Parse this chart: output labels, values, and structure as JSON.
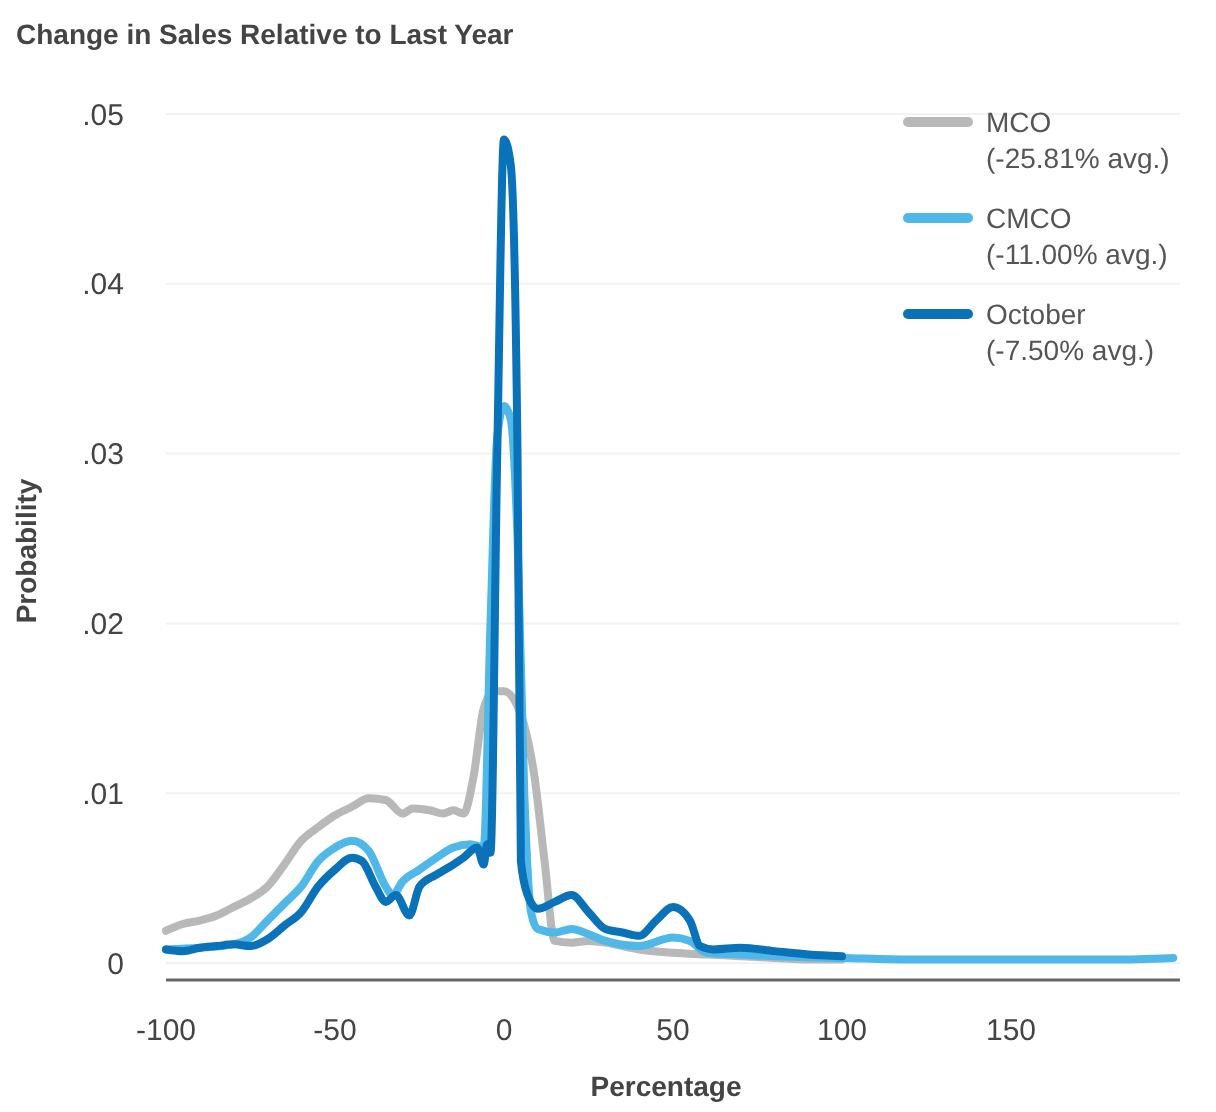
{
  "chart_data": {
    "type": "line",
    "title": "Change in Sales Relative to Last Year",
    "xlabel": "Percentage",
    "ylabel": "Probability",
    "xlim": [
      -100,
      200
    ],
    "xticks": [
      -100,
      -50,
      0,
      50,
      100,
      150
    ],
    "ylim": [
      -0.001,
      0.05
    ],
    "yticks": [
      0,
      {
        "value": 0.01,
        "label": ".01"
      },
      {
        "value": 0.02,
        "label": ".02"
      },
      {
        "value": 0.03,
        "label": ".03"
      },
      {
        "value": 0.04,
        "label": ".04"
      },
      {
        "value": 0.05,
        "label": ".05"
      }
    ],
    "grid": "y",
    "legend": "top right",
    "line_style": "solid",
    "marker": "none",
    "series": [
      {
        "name": "MCO (-25.81% avg.)",
        "color": "#b8b8b8",
        "x": [
          -100,
          -95,
          -90,
          -85,
          -80,
          -75,
          -70,
          -65,
          -60,
          -55,
          -50,
          -45,
          -40,
          -35,
          -30,
          -27,
          -22,
          -18,
          -15,
          -12,
          -9,
          -6,
          -3,
          0,
          3,
          6,
          9,
          12,
          15,
          20,
          25,
          30,
          35,
          40,
          50,
          60,
          70,
          80,
          90,
          100
        ],
        "values": [
          0.0019,
          0.0023,
          0.0025,
          0.0028,
          0.0033,
          0.0038,
          0.0045,
          0.0058,
          0.0072,
          0.008,
          0.0087,
          0.0092,
          0.0097,
          0.0096,
          0.0088,
          0.0091,
          0.009,
          0.0088,
          0.009,
          0.0088,
          0.011,
          0.015,
          0.016,
          0.016,
          0.0155,
          0.014,
          0.011,
          0.006,
          0.0013,
          0.0012,
          0.0013,
          0.0012,
          0.001,
          0.0008,
          0.0006,
          0.0005,
          0.0004,
          0.0003,
          0.0002,
          0.0002
        ]
      },
      {
        "name": "CMCO (-11.00% avg.)",
        "color": "#4fb8e8",
        "x": [
          -100,
          -90,
          -80,
          -75,
          -70,
          -65,
          -60,
          -55,
          -50,
          -45,
          -40,
          -35,
          -33,
          -30,
          -25,
          -20,
          -15,
          -10,
          -6,
          -4,
          -2,
          0,
          2,
          4,
          6,
          8,
          10,
          15,
          20,
          25,
          30,
          40,
          50,
          55,
          60,
          70,
          80,
          100,
          120,
          150,
          180,
          198
        ],
        "values": [
          0.0008,
          0.0009,
          0.0011,
          0.0015,
          0.0025,
          0.0035,
          0.0045,
          0.006,
          0.0068,
          0.0072,
          0.0066,
          0.0045,
          0.004,
          0.0048,
          0.0055,
          0.0062,
          0.0068,
          0.007,
          0.0068,
          0.02,
          0.031,
          0.0328,
          0.032,
          0.025,
          0.01,
          0.003,
          0.002,
          0.0018,
          0.002,
          0.0017,
          0.0013,
          0.001,
          0.0015,
          0.0013,
          0.0006,
          0.0005,
          0.0004,
          0.0003,
          0.0002,
          0.0002,
          0.0002,
          0.0003
        ]
      },
      {
        "name": "October (-7.50% avg.)",
        "color": "#0a72b8",
        "x": [
          -100,
          -95,
          -90,
          -85,
          -80,
          -75,
          -70,
          -65,
          -60,
          -55,
          -50,
          -45,
          -42,
          -38,
          -35,
          -32,
          -28,
          -25,
          -20,
          -15,
          -12,
          -8,
          -6,
          -5,
          -4,
          -2,
          0,
          2,
          4,
          5,
          7,
          10,
          15,
          20,
          25,
          30,
          35,
          40,
          45,
          50,
          55,
          58,
          62,
          70,
          80,
          90,
          100
        ],
        "values": [
          0.0008,
          0.0007,
          0.0009,
          0.001,
          0.0011,
          0.001,
          0.0014,
          0.0022,
          0.003,
          0.0045,
          0.0055,
          0.0062,
          0.006,
          0.0045,
          0.0036,
          0.004,
          0.0028,
          0.0045,
          0.0052,
          0.0058,
          0.0062,
          0.0068,
          0.0058,
          0.007,
          0.0065,
          0.03,
          0.0485,
          0.047,
          0.03,
          0.006,
          0.004,
          0.0032,
          0.0036,
          0.004,
          0.003,
          0.002,
          0.0018,
          0.0016,
          0.0025,
          0.0033,
          0.0025,
          0.001,
          0.0008,
          0.0009,
          0.0007,
          0.0005,
          0.0004
        ]
      }
    ]
  }
}
